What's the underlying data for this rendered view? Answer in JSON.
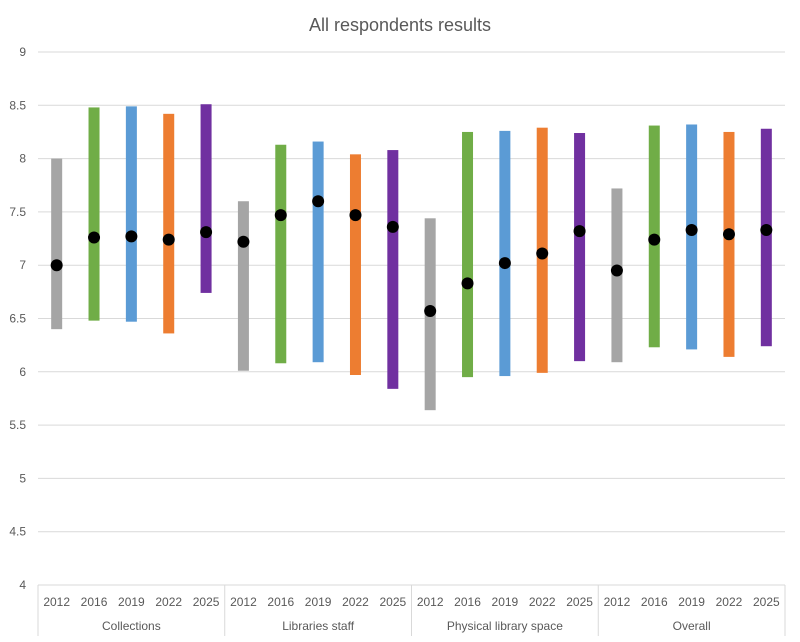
{
  "chart_data": {
    "type": "range-bar-with-mean",
    "title": "All respondents results",
    "ylim": [
      4,
      9
    ],
    "yticks": [
      "4",
      "4.5",
      "5",
      "5.5",
      "6",
      "6.5",
      "7",
      "7.5",
      "8",
      "8.5",
      "9"
    ],
    "grid": true,
    "legend": "none",
    "years": [
      "2012",
      "2016",
      "2019",
      "2022",
      "2025"
    ],
    "colors": {
      "2012": "#a5a5a5",
      "2016": "#70ad47",
      "2019": "#5b9bd5",
      "2022": "#ed7d31",
      "2025": "#7030a0",
      "mean": "#000000"
    },
    "groups": [
      {
        "name": "Collections",
        "low": [
          6.4,
          6.48,
          6.47,
          6.36,
          6.74
        ],
        "high": [
          8.0,
          8.48,
          8.49,
          8.42,
          8.51
        ],
        "mean": [
          7.0,
          7.26,
          7.27,
          7.24,
          7.31
        ]
      },
      {
        "name": "Libraries staff",
        "low": [
          6.01,
          6.08,
          6.09,
          5.97,
          5.84
        ],
        "high": [
          7.6,
          8.13,
          8.16,
          8.04,
          8.08
        ],
        "mean": [
          7.22,
          7.47,
          7.6,
          7.47,
          7.36
        ]
      },
      {
        "name": "Physical library space",
        "low": [
          5.64,
          5.95,
          5.96,
          5.99,
          6.1
        ],
        "high": [
          7.44,
          8.25,
          8.26,
          8.29,
          8.24
        ],
        "mean": [
          6.57,
          6.83,
          7.02,
          7.11,
          7.32
        ]
      },
      {
        "name": "Overall",
        "low": [
          6.09,
          6.23,
          6.21,
          6.14,
          6.24
        ],
        "high": [
          7.72,
          8.31,
          8.32,
          8.25,
          8.28
        ],
        "mean": [
          6.95,
          7.24,
          7.33,
          7.29,
          7.33
        ]
      }
    ]
  }
}
